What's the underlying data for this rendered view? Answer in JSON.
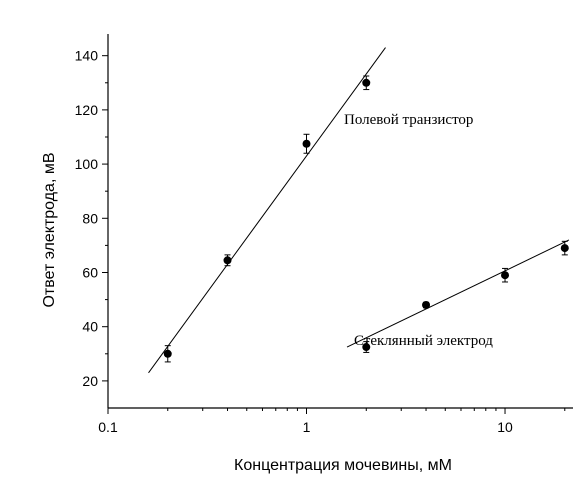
{
  "chart_data": {
    "type": "scatter",
    "xlabel": "Концентрация мочевины, мМ",
    "ylabel": "Ответ электрода, мВ",
    "xscale": "log",
    "xlim": [
      0.1,
      22
    ],
    "ylim": [
      10,
      148
    ],
    "x_ticks": [
      {
        "value": 0.1,
        "label": "0.1"
      },
      {
        "value": 1,
        "label": "1"
      },
      {
        "value": 10,
        "label": "10"
      }
    ],
    "y_ticks": [
      {
        "value": 20,
        "label": "20"
      },
      {
        "value": 40,
        "label": "40"
      },
      {
        "value": 60,
        "label": "60"
      },
      {
        "value": 80,
        "label": "80"
      },
      {
        "value": 100,
        "label": "100"
      },
      {
        "value": 120,
        "label": "120"
      },
      {
        "value": 140,
        "label": "140"
      }
    ],
    "grid": false,
    "series": [
      {
        "name": "Полевой транзистор",
        "x": [
          0.2,
          0.4,
          1,
          2
        ],
        "y": [
          30,
          64.5,
          107.5,
          130
        ],
        "err": [
          3,
          2,
          3.5,
          2.5
        ],
        "fit": {
          "x": [
            0.16,
            2.5
          ],
          "y": [
            23,
            143
          ]
        }
      },
      {
        "name": "Стеклянный электрод",
        "x": [
          2,
          4,
          10,
          20
        ],
        "y": [
          32.5,
          48,
          59,
          69
        ],
        "err": [
          2,
          1,
          2.5,
          2.5
        ],
        "fit": {
          "x": [
            1.6,
            21
          ],
          "y": [
            32.5,
            72
          ]
        }
      }
    ]
  }
}
